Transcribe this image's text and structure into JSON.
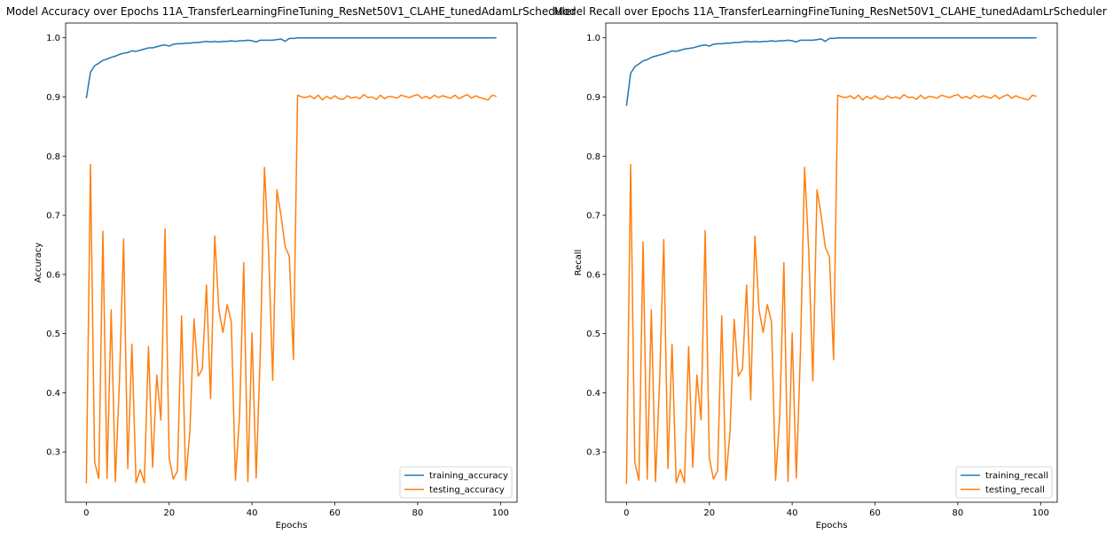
{
  "chart_data": [
    {
      "type": "line",
      "title": "Model Accuracy over Epochs 11A_TransferLearningFineTuning_ResNet50V1_CLAHE_tunedAdamLrScheduler",
      "xlabel": "Epochs",
      "ylabel": "Accuracy",
      "xlim": [
        -5,
        104
      ],
      "ylim": [
        0.215,
        1.025
      ],
      "xticks": [
        0,
        20,
        40,
        60,
        80,
        100
      ],
      "yticks": [
        0.3,
        0.4,
        0.5,
        0.6,
        0.7,
        0.8,
        0.9,
        1.0
      ],
      "ytick_labels": [
        "0.3",
        "0.4",
        "0.5",
        "0.6",
        "0.7",
        "0.8",
        "0.9",
        "1.0"
      ],
      "grid": false,
      "legend_position": "lower-right",
      "series": [
        {
          "name": "training_accuracy",
          "color": "#1f77b4",
          "values": [
            0.898,
            0.942,
            0.953,
            0.957,
            0.962,
            0.964,
            0.967,
            0.969,
            0.972,
            0.974,
            0.975,
            0.978,
            0.977,
            0.979,
            0.981,
            0.983,
            0.983,
            0.985,
            0.987,
            0.988,
            0.986,
            0.989,
            0.99,
            0.99,
            0.991,
            0.991,
            0.992,
            0.992,
            0.993,
            0.994,
            0.993,
            0.994,
            0.993,
            0.994,
            0.994,
            0.995,
            0.994,
            0.995,
            0.995,
            0.996,
            0.995,
            0.993,
            0.996,
            0.996,
            0.996,
            0.996,
            0.997,
            0.998,
            0.994,
            0.999,
            0.999,
            1.0,
            1.0,
            1.0,
            1.0,
            1.0,
            1.0,
            1.0,
            1.0,
            1.0,
            1.0,
            1.0,
            1.0,
            1.0,
            1.0,
            1.0,
            1.0,
            1.0,
            1.0,
            1.0,
            1.0,
            1.0,
            1.0,
            1.0,
            1.0,
            1.0,
            1.0,
            1.0,
            1.0,
            1.0,
            1.0,
            1.0,
            1.0,
            1.0,
            1.0,
            1.0,
            1.0,
            1.0,
            1.0,
            1.0,
            1.0,
            1.0,
            1.0,
            1.0,
            1.0,
            1.0,
            1.0,
            1.0,
            1.0,
            1.0
          ]
        },
        {
          "name": "testing_accuracy",
          "color": "#ff7f0e",
          "values": [
            0.247,
            0.786,
            0.283,
            0.255,
            0.673,
            0.255,
            0.54,
            0.25,
            0.42,
            0.66,
            0.272,
            0.482,
            0.248,
            0.27,
            0.248,
            0.478,
            0.274,
            0.43,
            0.354,
            0.677,
            0.29,
            0.254,
            0.268,
            0.53,
            0.252,
            0.335,
            0.525,
            0.428,
            0.44,
            0.582,
            0.39,
            0.665,
            0.54,
            0.502,
            0.549,
            0.52,
            0.252,
            0.362,
            0.62,
            0.25,
            0.501,
            0.256,
            0.47,
            0.781,
            0.64,
            0.421,
            0.743,
            0.7,
            0.647,
            0.631,
            0.456,
            0.903,
            0.9,
            0.899,
            0.902,
            0.897,
            0.903,
            0.895,
            0.901,
            0.897,
            0.902,
            0.897,
            0.896,
            0.902,
            0.898,
            0.9,
            0.897,
            0.904,
            0.899,
            0.9,
            0.896,
            0.903,
            0.897,
            0.901,
            0.9,
            0.898,
            0.903,
            0.901,
            0.899,
            0.902,
            0.904,
            0.898,
            0.901,
            0.897,
            0.903,
            0.899,
            0.902,
            0.9,
            0.898,
            0.903,
            0.897,
            0.901,
            0.904,
            0.898,
            0.902,
            0.899,
            0.897,
            0.895,
            0.903,
            0.901
          ]
        }
      ]
    },
    {
      "type": "line",
      "title": "Model Recall over Epochs 11A_TransferLearningFineTuning_ResNet50V1_CLAHE_tunedAdamLrScheduler",
      "xlabel": "Epochs",
      "ylabel": "Recall",
      "xlim": [
        -5,
        104
      ],
      "ylim": [
        0.215,
        1.025
      ],
      "xticks": [
        0,
        20,
        40,
        60,
        80,
        100
      ],
      "yticks": [
        0.3,
        0.4,
        0.5,
        0.6,
        0.7,
        0.8,
        0.9,
        1.0
      ],
      "ytick_labels": [
        "0.3",
        "0.4",
        "0.5",
        "0.6",
        "0.7",
        "0.8",
        "0.9",
        "1.0"
      ],
      "grid": false,
      "legend_position": "lower-right",
      "series": [
        {
          "name": "training_recall",
          "color": "#1f77b4",
          "values": [
            0.885,
            0.94,
            0.951,
            0.956,
            0.961,
            0.963,
            0.967,
            0.969,
            0.971,
            0.973,
            0.975,
            0.978,
            0.977,
            0.979,
            0.981,
            0.982,
            0.983,
            0.985,
            0.987,
            0.988,
            0.986,
            0.989,
            0.99,
            0.99,
            0.991,
            0.991,
            0.992,
            0.992,
            0.993,
            0.994,
            0.993,
            0.994,
            0.993,
            0.994,
            0.994,
            0.995,
            0.994,
            0.995,
            0.995,
            0.996,
            0.995,
            0.993,
            0.996,
            0.996,
            0.996,
            0.996,
            0.997,
            0.998,
            0.994,
            0.999,
            0.999,
            1.0,
            1.0,
            1.0,
            1.0,
            1.0,
            1.0,
            1.0,
            1.0,
            1.0,
            1.0,
            1.0,
            1.0,
            1.0,
            1.0,
            1.0,
            1.0,
            1.0,
            1.0,
            1.0,
            1.0,
            1.0,
            1.0,
            1.0,
            1.0,
            1.0,
            1.0,
            1.0,
            1.0,
            1.0,
            1.0,
            1.0,
            1.0,
            1.0,
            1.0,
            1.0,
            1.0,
            1.0,
            1.0,
            1.0,
            1.0,
            1.0,
            1.0,
            1.0,
            1.0,
            1.0,
            1.0,
            1.0,
            1.0,
            1.0
          ]
        },
        {
          "name": "testing_recall",
          "color": "#ff7f0e",
          "values": [
            0.246,
            0.786,
            0.283,
            0.252,
            0.655,
            0.254,
            0.54,
            0.25,
            0.42,
            0.659,
            0.272,
            0.482,
            0.248,
            0.27,
            0.248,
            0.478,
            0.274,
            0.43,
            0.354,
            0.674,
            0.29,
            0.254,
            0.268,
            0.53,
            0.252,
            0.335,
            0.524,
            0.428,
            0.44,
            0.582,
            0.388,
            0.665,
            0.54,
            0.502,
            0.549,
            0.52,
            0.252,
            0.362,
            0.62,
            0.25,
            0.501,
            0.256,
            0.47,
            0.781,
            0.64,
            0.42,
            0.743,
            0.7,
            0.646,
            0.63,
            0.456,
            0.903,
            0.9,
            0.899,
            0.902,
            0.897,
            0.903,
            0.895,
            0.901,
            0.897,
            0.902,
            0.897,
            0.896,
            0.902,
            0.898,
            0.9,
            0.897,
            0.904,
            0.899,
            0.9,
            0.896,
            0.903,
            0.897,
            0.901,
            0.9,
            0.898,
            0.903,
            0.901,
            0.899,
            0.902,
            0.904,
            0.898,
            0.901,
            0.897,
            0.903,
            0.899,
            0.902,
            0.9,
            0.898,
            0.903,
            0.897,
            0.901,
            0.904,
            0.898,
            0.902,
            0.899,
            0.897,
            0.895,
            0.903,
            0.901
          ]
        }
      ]
    }
  ]
}
